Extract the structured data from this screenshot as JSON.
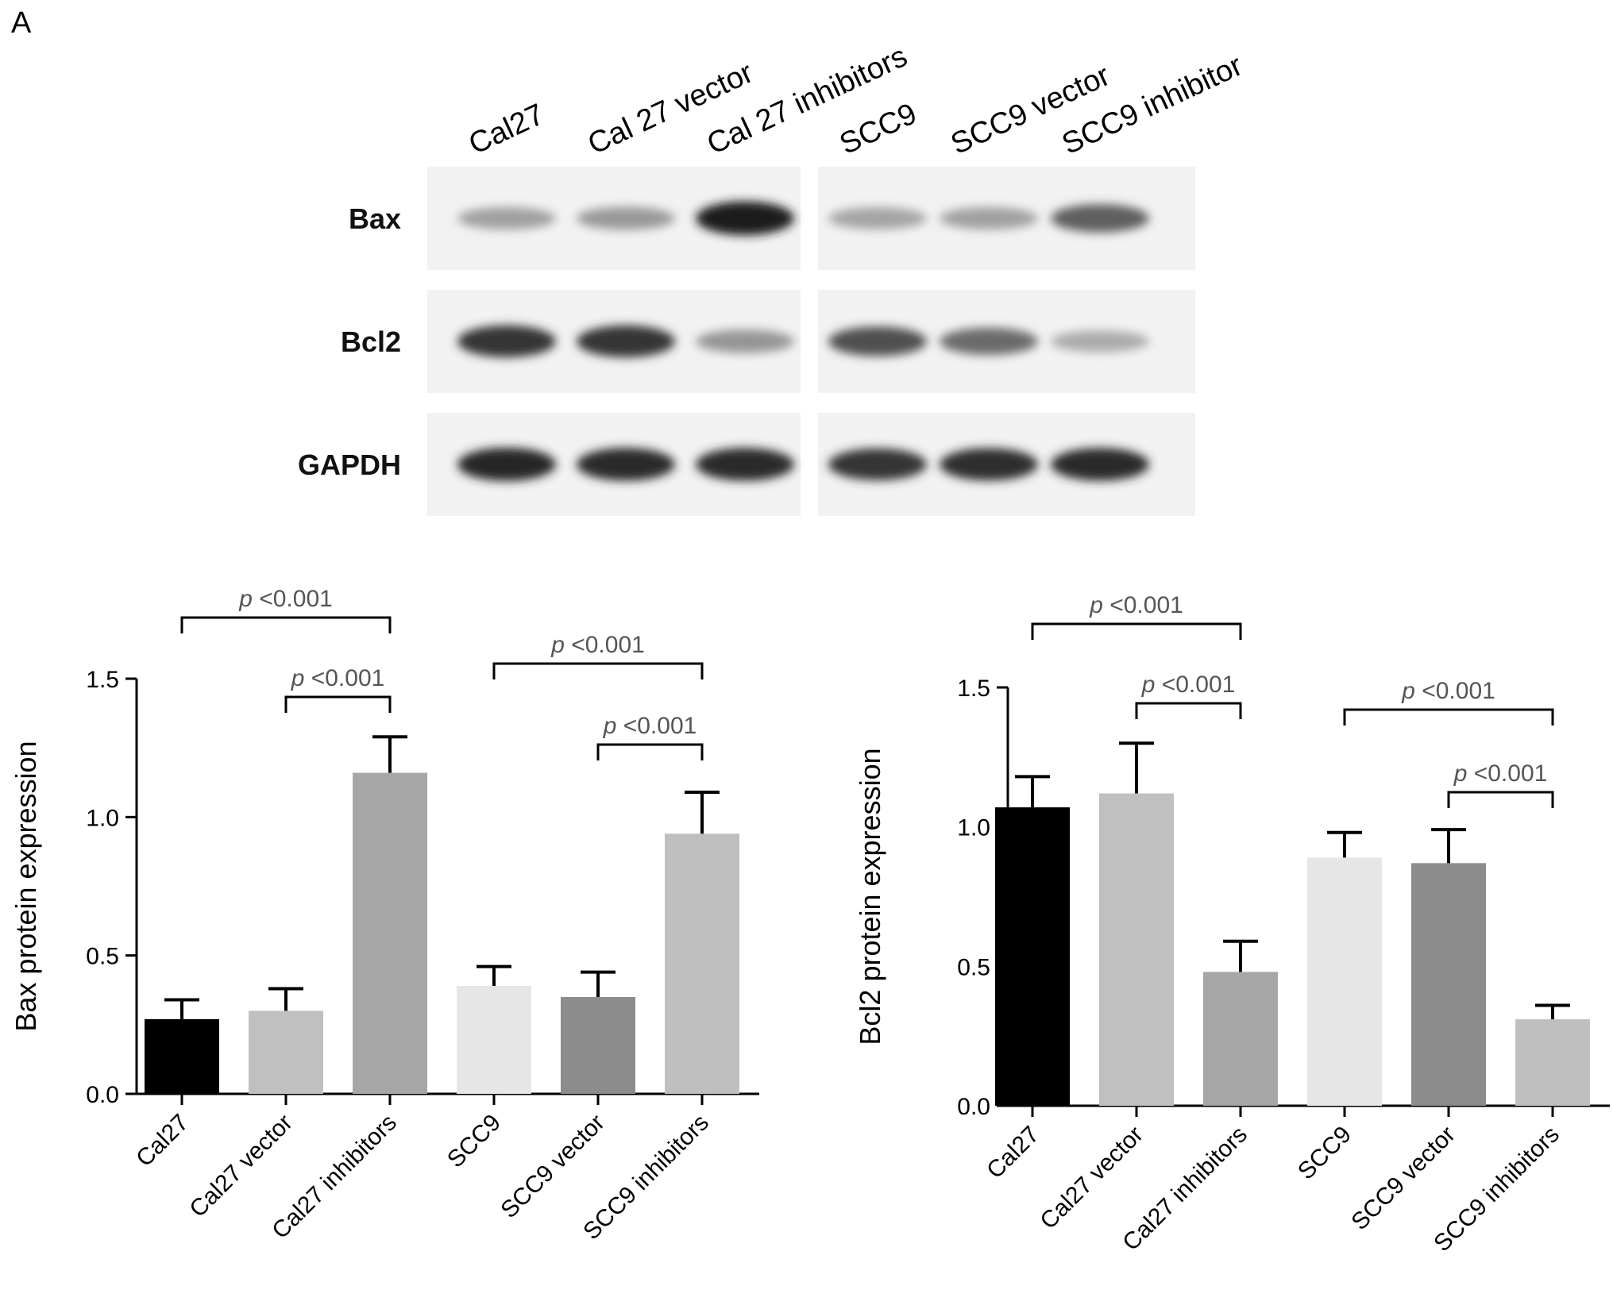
{
  "panel_label": "A",
  "blot": {
    "lanes": [
      "Cal27",
      "Cal 27 vector",
      "Cal 27 inhibitors",
      "SCC9",
      "SCC9 vector",
      "SCC9 inhibitor"
    ],
    "rows": [
      {
        "label": "Bax",
        "intensity": [
          0.35,
          0.38,
          0.95,
          0.33,
          0.35,
          0.65
        ]
      },
      {
        "label": "Bcl2",
        "intensity": [
          0.85,
          0.85,
          0.4,
          0.72,
          0.6,
          0.3
        ]
      },
      {
        "label": "GAPDH",
        "intensity": [
          0.92,
          0.9,
          0.9,
          0.85,
          0.88,
          0.9
        ]
      }
    ]
  },
  "chart_data": [
    {
      "type": "bar",
      "categories": [
        "Cal27",
        "Cal27 vector",
        "Cal27 inhibitors",
        "SCC9",
        "SCC9 vector",
        "SCC9 inhibitors"
      ],
      "values": [
        0.27,
        0.3,
        1.16,
        0.39,
        0.35,
        0.94
      ],
      "errors": [
        0.07,
        0.08,
        0.13,
        0.07,
        0.09,
        0.15
      ],
      "colors": [
        "#000000",
        "#c0c0c0",
        "#a6a6a6",
        "#e6e6e6",
        "#8c8c8c",
        "#bfbfbf"
      ],
      "ylabel": "Bax protein expression",
      "xlabel": "",
      "ylim": [
        0,
        1.5
      ],
      "yticks": [
        "0.0",
        "0.5",
        "1.0",
        "1.5"
      ],
      "ytick_values": [
        0,
        0.5,
        1.0,
        1.5
      ],
      "annotations": [
        {
          "from": 0,
          "to": 2,
          "p": "p",
          "text": "<0.001"
        },
        {
          "from": 1,
          "to": 2,
          "p": "p",
          "text": "<0.001"
        },
        {
          "from": 3,
          "to": 5,
          "p": "p",
          "text": "<0.001"
        },
        {
          "from": 4,
          "to": 5,
          "p": "p",
          "text": "<0.001"
        }
      ]
    },
    {
      "type": "bar",
      "categories": [
        "Cal27",
        "Cal27 vector",
        "Cal27 inhibitors",
        "SCC9",
        "SCC9 vector",
        "SCC9 inhibitors"
      ],
      "values": [
        1.07,
        1.12,
        0.48,
        0.89,
        0.87,
        0.31
      ],
      "errors": [
        0.11,
        0.18,
        0.11,
        0.09,
        0.12,
        0.05
      ],
      "colors": [
        "#000000",
        "#c0c0c0",
        "#a6a6a6",
        "#e6e6e6",
        "#8c8c8c",
        "#bfbfbf"
      ],
      "ylabel": "Bcl2 protein expression",
      "xlabel": "",
      "ylim": [
        0,
        1.5
      ],
      "yticks": [
        "0.0",
        "0.5",
        "1.0",
        "1.5"
      ],
      "ytick_values": [
        0,
        0.5,
        1.0,
        1.5
      ],
      "annotations": [
        {
          "from": 0,
          "to": 2,
          "p": "p",
          "text": "<0.001"
        },
        {
          "from": 1,
          "to": 2,
          "p": "p",
          "text": "<0.001"
        },
        {
          "from": 3,
          "to": 5,
          "p": "p",
          "text": "<0.001"
        },
        {
          "from": 4,
          "to": 5,
          "p": "p",
          "text": "<0.001"
        }
      ]
    }
  ]
}
